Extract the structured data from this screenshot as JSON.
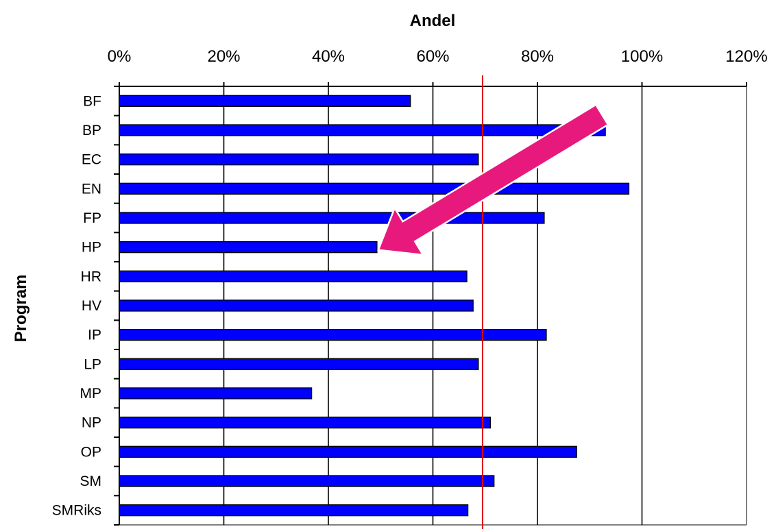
{
  "chart_data": {
    "type": "bar",
    "orientation": "horizontal",
    "xlabel": "Andel",
    "ylabel": "Program",
    "xlim": [
      0,
      120
    ],
    "xticks": [
      "0%",
      "20%",
      "40%",
      "60%",
      "80%",
      "100%",
      "120%"
    ],
    "x_axis_position": "top",
    "grid": "vertical",
    "categories": [
      "BF",
      "BP",
      "EC",
      "EN",
      "FP",
      "HP",
      "HR",
      "HV",
      "IP",
      "LP",
      "MP",
      "NP",
      "OP",
      "SM",
      "SMRiks"
    ],
    "values": [
      55.7,
      93.0,
      68.7,
      97.5,
      81.3,
      49.3,
      66.5,
      67.7,
      81.7,
      68.7,
      36.8,
      71.0,
      87.5,
      71.7,
      66.7
    ],
    "reference_line": {
      "value": 69.5,
      "color": "#e00000"
    },
    "annotation_arrow": {
      "color": "#e8197d",
      "from_value": 93.0,
      "from_category": "BF",
      "to_value": 49.3,
      "to_category": "HP"
    },
    "colors": {
      "bar": "#0000ff",
      "bar_border": "#000000",
      "grid": "#000000",
      "frame": "#808080"
    }
  }
}
